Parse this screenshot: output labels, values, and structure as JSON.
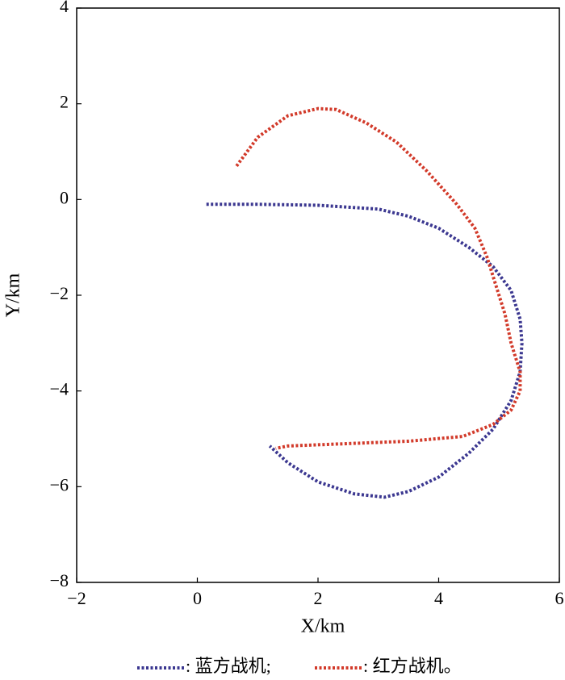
{
  "chart_data": {
    "type": "line",
    "xlabel": "X/km",
    "ylabel": "Y/km",
    "xlim": [
      -2,
      6
    ],
    "ylim": [
      -8,
      4
    ],
    "xticks": [
      {
        "value": -2,
        "label": "−2"
      },
      0,
      2,
      4,
      6
    ],
    "yticks": [
      {
        "value": -8,
        "label": "−8"
      },
      {
        "value": -6,
        "label": "−6"
      },
      {
        "value": -4,
        "label": "−4"
      },
      {
        "value": -2,
        "label": "−2"
      },
      0,
      2,
      4
    ],
    "series": [
      {
        "name": ": 蓝方战机;",
        "color": "#3b3790",
        "x": [
          0.15,
          1,
          2,
          3,
          3.5,
          4,
          4.5,
          4.9,
          5.2,
          5.35,
          5.38,
          5.35,
          5.2,
          4.9,
          4.5,
          4,
          3.5,
          3.1,
          2.6,
          2,
          1.5,
          1.2
        ],
        "values": [
          -0.1,
          -0.1,
          -0.12,
          -0.2,
          -0.35,
          -0.6,
          -1,
          -1.4,
          -1.9,
          -2.5,
          -3,
          -3.6,
          -4.2,
          -4.8,
          -5.3,
          -5.8,
          -6.1,
          -6.22,
          -6.15,
          -5.9,
          -5.5,
          -5.15
        ]
      },
      {
        "name": ": 红方战机。",
        "color": "#d23a2a",
        "x": [
          0.65,
          1,
          1.5,
          2,
          2.3,
          2.8,
          3.3,
          3.8,
          4.3,
          4.6,
          4.8,
          4.95,
          5.1,
          5.2,
          5.35,
          5.35,
          5.2,
          4.9,
          4.4,
          3.5,
          2.5,
          1.5,
          1.3
        ],
        "values": [
          0.7,
          1.3,
          1.75,
          1.9,
          1.88,
          1.6,
          1.2,
          0.6,
          -0.1,
          -0.6,
          -1.2,
          -1.8,
          -2.4,
          -3,
          -3.6,
          -4,
          -4.4,
          -4.7,
          -4.95,
          -5.05,
          -5.1,
          -5.15,
          -5.2
        ]
      }
    ]
  }
}
